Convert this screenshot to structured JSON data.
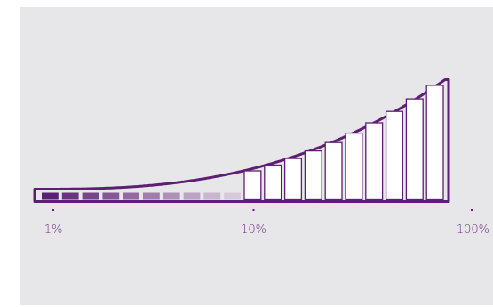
{
  "chart_data": {
    "type": "bar",
    "scale": "log",
    "x_ticks": [
      "1%",
      "10%",
      "100%"
    ],
    "segments_per_decade": 10,
    "filled_segments": 10,
    "colors": {
      "outline": "#5d1f73",
      "filled_start": "#5d1f73",
      "filled_end": "#d8c8dc",
      "empty_fill": "#ffffff",
      "tick_label": "#6b2d80",
      "background": "#e7e7e9"
    },
    "grid": false,
    "legend": "none"
  }
}
